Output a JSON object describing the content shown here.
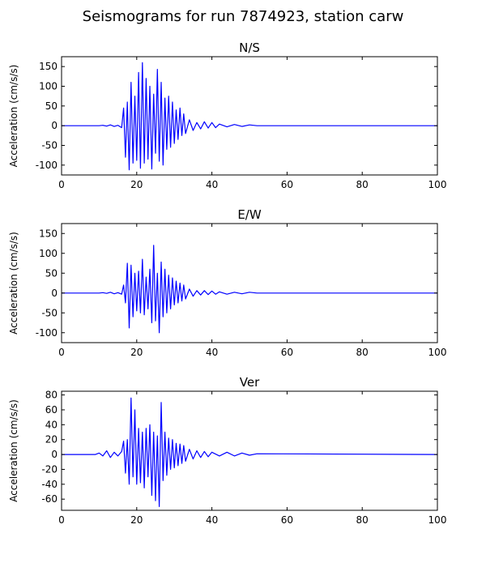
{
  "figure": {
    "title": "Seismograms for run 7874923, station carw"
  },
  "colors": {
    "trace": "#0000ff",
    "axes": "#000000",
    "background": "#ffffff"
  },
  "chart_data": [
    {
      "type": "line",
      "title": "N/S",
      "xlabel": "",
      "ylabel": "Acceleration (cm/s/s)",
      "xlim": [
        0,
        100
      ],
      "ylim": [
        -125,
        175
      ],
      "xticks": [
        0,
        20,
        40,
        60,
        80,
        100
      ],
      "yticks": [
        -100,
        -50,
        0,
        50,
        100,
        150
      ],
      "grid": false,
      "series": [
        {
          "x": [
            0,
            10,
            11,
            12,
            13,
            14,
            15,
            16,
            16.5,
            17,
            17.5,
            18,
            18.5,
            19,
            19.5,
            20,
            20.5,
            21,
            21.5,
            22,
            22.5,
            23,
            23.5,
            24,
            24.5,
            25,
            25.5,
            26,
            26.5,
            27,
            27.5,
            28,
            28.5,
            29,
            29.5,
            30,
            30.5,
            31,
            31.5,
            32,
            32.5,
            33,
            34,
            35,
            36,
            37,
            38,
            39,
            40,
            41,
            42,
            44,
            46,
            48,
            50,
            52,
            100
          ],
          "y": [
            0,
            0,
            1,
            -1,
            2,
            -2,
            1,
            -5,
            45,
            -80,
            60,
            -112,
            110,
            -95,
            75,
            -88,
            135,
            -108,
            160,
            -95,
            120,
            -85,
            100,
            -110,
            80,
            -70,
            143,
            -90,
            110,
            -100,
            70,
            -60,
            75,
            -55,
            60,
            -45,
            40,
            -35,
            45,
            -25,
            30,
            -20,
            15,
            -12,
            8,
            -8,
            10,
            -6,
            8,
            -5,
            4,
            -3,
            3,
            -2,
            2,
            0,
            0
          ]
        }
      ]
    },
    {
      "type": "line",
      "title": "E/W",
      "xlabel": "",
      "ylabel": "Acceleration (cm/s/s)",
      "xlim": [
        0,
        100
      ],
      "ylim": [
        -125,
        175
      ],
      "xticks": [
        0,
        20,
        40,
        60,
        80,
        100
      ],
      "yticks": [
        -100,
        -50,
        0,
        50,
        100,
        150
      ],
      "grid": false,
      "series": [
        {
          "x": [
            0,
            10,
            11,
            12,
            13,
            14,
            15,
            16,
            16.5,
            17,
            17.5,
            18,
            18.5,
            19,
            19.5,
            20,
            20.5,
            21,
            21.5,
            22,
            22.5,
            23,
            23.5,
            24,
            24.5,
            25,
            25.5,
            26,
            26.5,
            27,
            27.5,
            28,
            28.5,
            29,
            29.5,
            30,
            30.5,
            31,
            31.5,
            32,
            32.5,
            33,
            34,
            35,
            36,
            37,
            38,
            39,
            40,
            41,
            42,
            44,
            46,
            48,
            50,
            52,
            100
          ],
          "y": [
            0,
            0,
            1,
            -1,
            2,
            -2,
            1,
            -3,
            20,
            -25,
            75,
            -88,
            70,
            -60,
            50,
            -45,
            55,
            -50,
            85,
            -55,
            40,
            -40,
            60,
            -75,
            120,
            -70,
            50,
            -100,
            78,
            -60,
            60,
            -50,
            45,
            -40,
            38,
            -30,
            30,
            -25,
            25,
            -20,
            20,
            -15,
            10,
            -8,
            6,
            -5,
            6,
            -4,
            5,
            -3,
            3,
            -3,
            2,
            -2,
            2,
            0,
            0
          ]
        }
      ]
    },
    {
      "type": "line",
      "title": "Ver",
      "xlabel": "",
      "ylabel": "Acceleration (cm/s/s)",
      "xlim": [
        0,
        100
      ],
      "ylim": [
        -75,
        85
      ],
      "xticks": [
        0,
        20,
        40,
        60,
        80,
        100
      ],
      "yticks": [
        -60,
        -40,
        -20,
        0,
        20,
        40,
        60,
        80
      ],
      "grid": false,
      "series": [
        {
          "x": [
            0,
            9,
            10,
            11,
            12,
            13,
            14,
            15,
            16,
            16.5,
            17,
            17.5,
            18,
            18.5,
            19,
            19.5,
            20,
            20.5,
            21,
            21.5,
            22,
            22.5,
            23,
            23.5,
            24,
            24.5,
            25,
            25.5,
            26,
            26.5,
            27,
            27.5,
            28,
            28.5,
            29,
            29.5,
            30,
            30.5,
            31,
            31.5,
            32,
            32.5,
            33,
            34,
            35,
            36,
            37,
            38,
            39,
            40,
            42,
            44,
            46,
            48,
            50,
            52,
            100
          ],
          "y": [
            0,
            0,
            2,
            -2,
            5,
            -4,
            3,
            -2,
            4,
            18,
            -25,
            20,
            -40,
            76,
            -30,
            60,
            -40,
            35,
            -38,
            30,
            -45,
            35,
            -30,
            40,
            -55,
            30,
            -62,
            25,
            -70,
            70,
            -35,
            30,
            -28,
            22,
            -20,
            20,
            -18,
            15,
            -15,
            14,
            -12,
            12,
            -9,
            7,
            -6,
            5,
            -4,
            4,
            -3,
            3,
            -2,
            3,
            -2,
            2,
            -1,
            1,
            0
          ]
        }
      ]
    }
  ]
}
